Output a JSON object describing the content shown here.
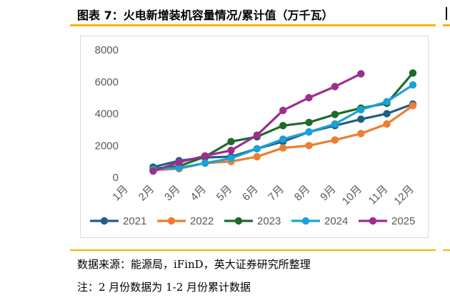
{
  "figure": {
    "title": "图表 7：火电新增装机容量情况/累计值（万千瓦）",
    "source": "数据来源：能源局，iFinD，英大证券研究所整理",
    "note": "注：2 月份数据为 1-2 月份累计数据"
  },
  "chart_data": {
    "type": "line",
    "title": "火电新增装机容量情况/累计值（万千瓦）",
    "xlabel": "",
    "ylabel": "",
    "categories": [
      "1月",
      "2月",
      "3月",
      "4月",
      "5月",
      "6月",
      "7月",
      "8月",
      "9月",
      "10月",
      "11月",
      "12月"
    ],
    "yticks": [
      "0",
      "2000",
      "4000",
      "6000",
      "8000"
    ],
    "ylim": [
      0,
      8000
    ],
    "grid": false,
    "legend": "bottom",
    "series": [
      {
        "name": "2021",
        "color": "#1f5f86",
        "values": [
          null,
          650,
          1050,
          1250,
          1300,
          1800,
          2250,
          2850,
          3250,
          3650,
          4000,
          4600
        ]
      },
      {
        "name": "2022",
        "color": "#ed7d31",
        "values": [
          null,
          450,
          550,
          900,
          1000,
          1300,
          1850,
          2000,
          2350,
          2750,
          3350,
          4500
        ]
      },
      {
        "name": "2023",
        "color": "#1e6b2a",
        "values": [
          null,
          550,
          700,
          1300,
          2250,
          2550,
          3250,
          3450,
          3950,
          4350,
          4650,
          6550
        ]
      },
      {
        "name": "2024",
        "color": "#1ba1d9",
        "values": [
          null,
          500,
          600,
          900,
          1200,
          1800,
          2400,
          2850,
          3350,
          4250,
          4750,
          5800
        ]
      },
      {
        "name": "2025",
        "color": "#9b2f8e",
        "values": [
          null,
          400,
          950,
          1350,
          1700,
          2650,
          4200,
          5000,
          5700,
          6500,
          null,
          null
        ]
      }
    ]
  }
}
